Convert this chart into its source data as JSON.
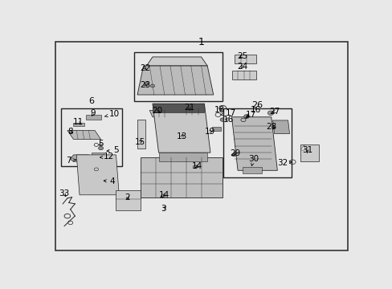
{
  "bg_color": "#e8e8e8",
  "border_color": "#333333",
  "fig_width": 4.89,
  "fig_height": 3.6,
  "dpi": 100,
  "label_fontsize": 7.5,
  "title_fontsize": 9,
  "dk": "#222222",
  "light": "#cccccc",
  "mid": "#bbbbbb",
  "dark_fill": "#444444"
}
